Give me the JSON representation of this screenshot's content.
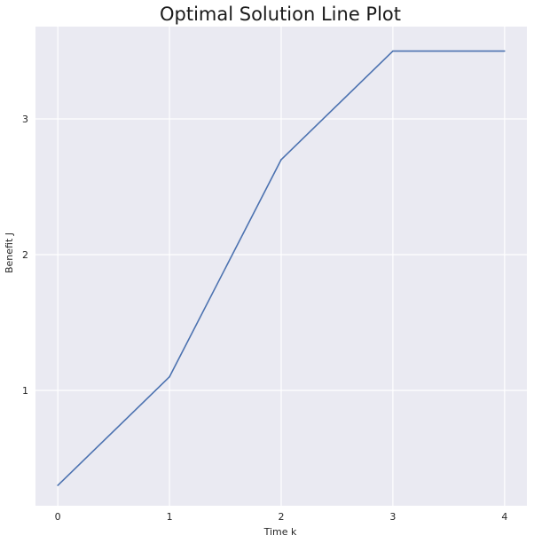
{
  "chart_data": {
    "type": "line",
    "title": "Optimal Solution Line Plot",
    "xlabel": "Time k",
    "ylabel": "Benefit J",
    "x": [
      0,
      1,
      2,
      3,
      4
    ],
    "series": [
      {
        "values": [
          0.3,
          1.1,
          2.7,
          3.5,
          3.5
        ]
      }
    ],
    "xlim": [
      -0.2,
      4.2
    ],
    "ylim": [
      0.15,
      3.68
    ],
    "xticks": [
      0,
      1,
      2,
      3,
      4
    ],
    "yticks": [
      1,
      2,
      3
    ],
    "grid": true,
    "colors": {
      "plot_background": "#eaeaf2",
      "grid": "#ffffff",
      "line": "#4c72b0"
    }
  }
}
